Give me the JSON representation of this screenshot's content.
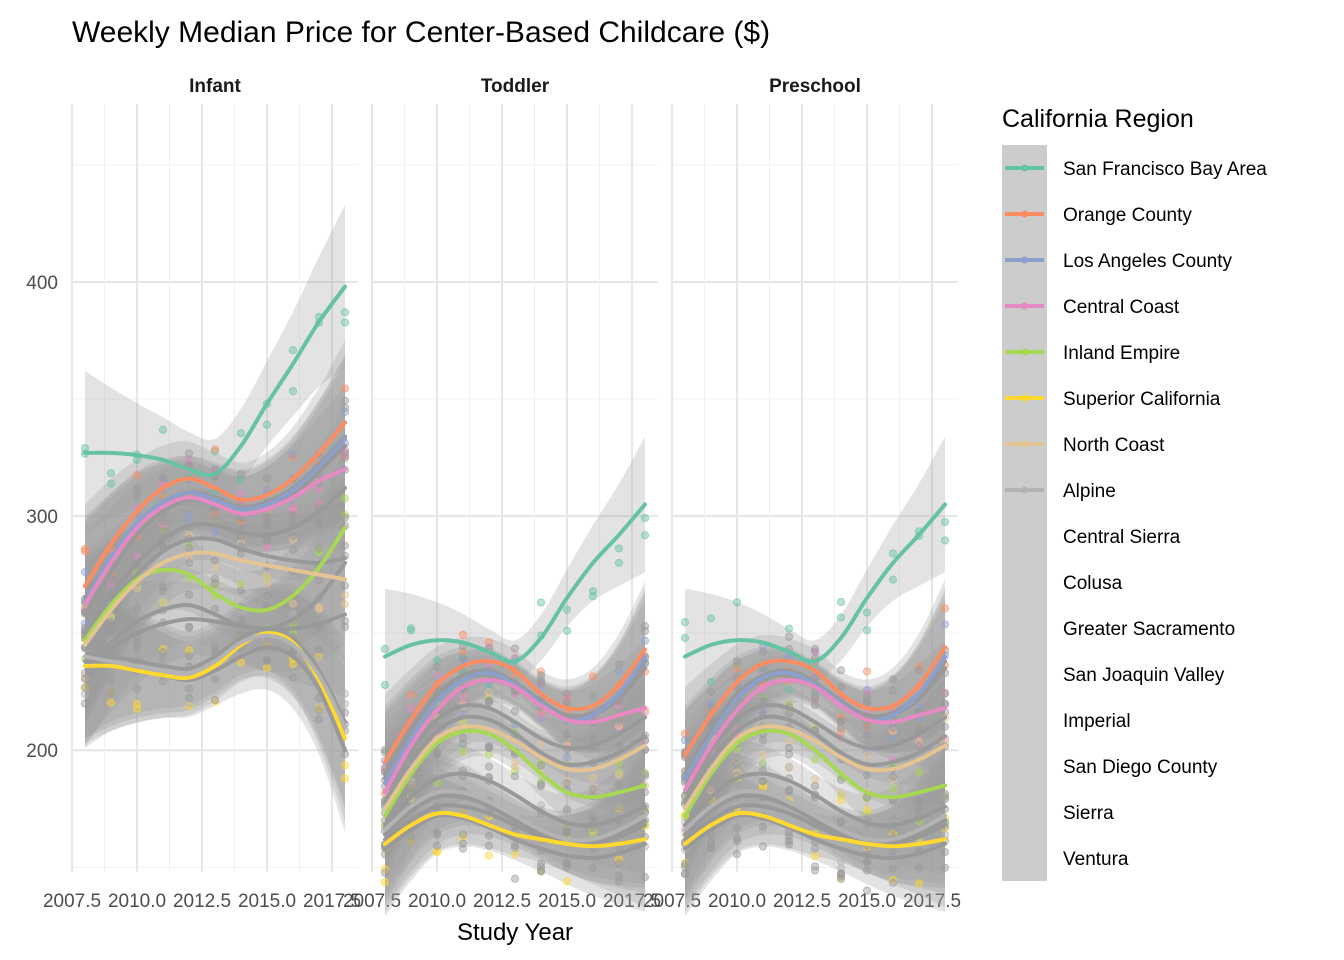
{
  "chart_data": {
    "type": "line",
    "title": "Weekly Median Price for Center-Based Childcare ($)",
    "xlabel": "Study Year",
    "ylabel": "",
    "xlim": [
      2007.5,
      2018.5
    ],
    "ylim": [
      148,
      476
    ],
    "xticks": [
      2007.5,
      2010.0,
      2012.5,
      2015.0,
      2017.5
    ],
    "xtick_labels": [
      "2007.5",
      "2010.0",
      "2012.5",
      "2015.0",
      "2017.5"
    ],
    "yticks": [
      200,
      300,
      400
    ],
    "ytick_labels": [
      "200",
      "300",
      "400"
    ],
    "grid": true,
    "marks": "smoothed trend lines with confidence bands over jittered points",
    "legend": {
      "title": "California Region",
      "placement": "right",
      "entries": [
        {
          "name": "San Francisco Bay Area",
          "color": "#66c2a5"
        },
        {
          "name": "Orange County",
          "color": "#fc8d62"
        },
        {
          "name": "Los Angeles County",
          "color": "#8da0cb"
        },
        {
          "name": "Central Coast",
          "color": "#e78ac3"
        },
        {
          "name": "Inland Empire",
          "color": "#a6d854"
        },
        {
          "name": "Superior California",
          "color": "#ffd92f"
        },
        {
          "name": "North Coast",
          "color": "#e5c494"
        },
        {
          "name": "Alpine",
          "color": "#b3b3b3"
        },
        {
          "name": "Central Sierra",
          "color": ""
        },
        {
          "name": "Colusa",
          "color": ""
        },
        {
          "name": "Greater Sacramento",
          "color": ""
        },
        {
          "name": "San Joaquin Valley",
          "color": ""
        },
        {
          "name": "Imperial",
          "color": ""
        },
        {
          "name": "San Diego County",
          "color": ""
        },
        {
          "name": "Sierra",
          "color": ""
        },
        {
          "name": "Ventura",
          "color": ""
        }
      ]
    },
    "x": [
      2008,
      2009,
      2010,
      2011,
      2012,
      2013,
      2014,
      2015,
      2016,
      2017,
      2018
    ],
    "panels": [
      {
        "name": "Infant",
        "series": [
          {
            "name": "San Francisco Bay Area",
            "values": [
              327,
              327,
              326,
              324,
              320,
              318,
              330,
              348,
              365,
              383,
              398
            ]
          },
          {
            "name": "Orange County",
            "values": [
              270,
              288,
              302,
              312,
              316,
              312,
              307,
              309,
              316,
              327,
              340
            ]
          },
          {
            "name": "Los Angeles County",
            "values": [
              263,
              282,
              297,
              306,
              310,
              307,
              303,
              305,
              311,
              321,
              333
            ]
          },
          {
            "name": "Central Coast",
            "values": [
              262,
              280,
              295,
              304,
              308,
              305,
              301,
              303,
              308,
              315,
              320
            ]
          },
          {
            "name": "Inland Empire",
            "values": [
              247,
              262,
              273,
              277,
              275,
              267,
              261,
              260,
              266,
              278,
              295
            ]
          },
          {
            "name": "Superior California",
            "values": [
              236,
              236,
              234,
              232,
              231,
              236,
              245,
              250,
              246,
              230,
              205
            ]
          },
          {
            "name": "North Coast",
            "values": [
              245,
              260,
              272,
              280,
              284,
              284,
              281,
              279,
              277,
              275,
              273
            ]
          },
          {
            "name": "Alpine",
            "values": [
              240,
              238,
              236,
              234,
              233,
              238,
              246,
              249,
              245,
              232,
              210
            ]
          },
          {
            "name": "Central Sierra",
            "values": [
              248,
              262,
              275,
              285,
              290,
              290,
              286,
              283,
              281,
              280,
              282
            ]
          },
          {
            "name": "Colusa",
            "values": [
              238,
              244,
              250,
              254,
              256,
              255,
              253,
              252,
              252,
              254,
              258
            ]
          },
          {
            "name": "Greater Sacramento",
            "values": [
              250,
              266,
              280,
              290,
              296,
              296,
              293,
              292,
              295,
              302,
              312
            ]
          },
          {
            "name": "San Joaquin Valley",
            "values": [
              236,
              246,
              255,
              260,
              262,
              258,
              253,
              252,
              256,
              265,
              280
            ]
          },
          {
            "name": "Imperial",
            "values": [
              238,
              236,
              234,
              232,
              230,
              234,
              240,
              244,
              240,
              226,
              200
            ]
          },
          {
            "name": "San Diego County",
            "values": [
              258,
              276,
              292,
              302,
              307,
              305,
              301,
              303,
              309,
              319,
              330
            ]
          },
          {
            "name": "Sierra",
            "values": [
              240,
              240,
              238,
              236,
              235,
              240,
              248,
              252,
              248,
              234,
              212
            ]
          },
          {
            "name": "Ventura",
            "values": [
              265,
              282,
              296,
              305,
              310,
              308,
              304,
              306,
              312,
              322,
              334
            ]
          }
        ]
      },
      {
        "name": "Toddler",
        "series": [
          {
            "name": "San Francisco Bay Area",
            "values": [
              240,
              245,
              247,
              246,
              242,
              238,
              248,
              265,
              280,
              292,
              305
            ]
          },
          {
            "name": "Orange County",
            "values": [
              195,
              213,
              228,
              236,
              238,
              234,
              224,
              218,
              219,
              228,
              243
            ]
          },
          {
            "name": "Los Angeles County",
            "values": [
              186,
              205,
              221,
              230,
              233,
              228,
              220,
              213,
              215,
              224,
              240
            ]
          },
          {
            "name": "Central Coast",
            "values": [
              182,
              202,
              217,
              227,
              230,
              227,
              219,
              213,
              212,
              215,
              218
            ]
          },
          {
            "name": "Inland Empire",
            "values": [
              172,
              190,
              203,
              208,
              207,
              200,
              190,
              182,
              180,
              182,
              185
            ]
          },
          {
            "name": "Superior California",
            "values": [
              160,
              168,
              173,
              172,
              168,
              164,
              162,
              160,
              159,
              160,
              162
            ]
          },
          {
            "name": "North Coast",
            "values": [
              175,
              192,
              205,
              210,
              209,
              204,
              197,
              192,
              192,
              196,
              202
            ]
          },
          {
            "name": "Alpine",
            "values": [
              166,
              176,
              182,
              182,
              178,
              172,
              166,
              162,
              162,
              166,
              172
            ]
          },
          {
            "name": "Central Sierra",
            "values": [
              178,
              196,
              208,
              214,
              213,
              207,
              199,
              194,
              195,
              199,
              206
            ]
          },
          {
            "name": "Colusa",
            "values": [
              162,
              170,
              176,
              176,
              173,
              168,
              163,
              160,
              160,
              163,
              168
            ]
          },
          {
            "name": "Greater Sacramento",
            "values": [
              182,
              200,
              213,
              219,
              218,
              212,
              205,
              201,
              202,
              207,
              214
            ]
          },
          {
            "name": "San Joaquin Valley",
            "values": [
              168,
              180,
              188,
              190,
              187,
              181,
              174,
              169,
              168,
              171,
              176
            ]
          },
          {
            "name": "Imperial",
            "values": [
              158,
              166,
              172,
              171,
              167,
              162,
              158,
              155,
              154,
              156,
              160
            ]
          },
          {
            "name": "San Diego County",
            "values": [
              188,
              207,
              222,
              230,
              232,
              228,
              220,
              214,
              215,
              222,
              235
            ]
          },
          {
            "name": "Sierra",
            "values": [
              164,
              174,
              180,
              180,
              176,
              170,
              164,
              160,
              160,
              164,
              170
            ]
          },
          {
            "name": "Ventura",
            "values": [
              190,
              209,
              224,
              232,
              234,
              229,
              221,
              215,
              216,
              224,
              238
            ]
          }
        ]
      },
      {
        "name": "Preschool",
        "series": [
          {
            "name": "San Francisco Bay Area",
            "values": [
              240,
              245,
              247,
              246,
              242,
              238,
              248,
              265,
              280,
              292,
              305
            ]
          },
          {
            "name": "Orange County",
            "values": [
              198,
              215,
              229,
              237,
              238,
              234,
              224,
              218,
              219,
              228,
              244
            ]
          },
          {
            "name": "Los Angeles County",
            "values": [
              188,
              206,
              222,
              231,
              233,
              228,
              220,
              213,
              215,
              224,
              240
            ]
          },
          {
            "name": "Central Coast",
            "values": [
              183,
              202,
              217,
              227,
              230,
              227,
              219,
              213,
              212,
              215,
              218
            ]
          },
          {
            "name": "Inland Empire",
            "values": [
              172,
              190,
              203,
              208,
              207,
              200,
              190,
              182,
              180,
              182,
              185
            ]
          },
          {
            "name": "Superior California",
            "values": [
              160,
              168,
              173,
              172,
              168,
              164,
              162,
              160,
              159,
              160,
              162
            ]
          },
          {
            "name": "North Coast",
            "values": [
              175,
              192,
              205,
              210,
              209,
              204,
              197,
              192,
              192,
              196,
              202
            ]
          },
          {
            "name": "Alpine",
            "values": [
              166,
              176,
              182,
              182,
              178,
              172,
              166,
              162,
              162,
              166,
              172
            ]
          },
          {
            "name": "Central Sierra",
            "values": [
              178,
              196,
              208,
              214,
              213,
              207,
              199,
              194,
              195,
              199,
              206
            ]
          },
          {
            "name": "Colusa",
            "values": [
              162,
              170,
              176,
              176,
              173,
              168,
              163,
              160,
              160,
              163,
              168
            ]
          },
          {
            "name": "Greater Sacramento",
            "values": [
              182,
              200,
              213,
              219,
              218,
              212,
              205,
              201,
              202,
              207,
              214
            ]
          },
          {
            "name": "San Joaquin Valley",
            "values": [
              168,
              180,
              188,
              190,
              187,
              181,
              174,
              169,
              168,
              171,
              176
            ]
          },
          {
            "name": "Imperial",
            "values": [
              158,
              166,
              172,
              171,
              167,
              162,
              158,
              155,
              154,
              156,
              160
            ]
          },
          {
            "name": "San Diego County",
            "values": [
              188,
              207,
              222,
              230,
              232,
              228,
              220,
              214,
              215,
              222,
              235
            ]
          },
          {
            "name": "Sierra",
            "values": [
              164,
              174,
              180,
              180,
              176,
              170,
              164,
              160,
              160,
              164,
              170
            ]
          },
          {
            "name": "Ventura",
            "values": [
              190,
              209,
              224,
              232,
              234,
              229,
              221,
              215,
              216,
              224,
              238
            ]
          }
        ]
      }
    ]
  }
}
